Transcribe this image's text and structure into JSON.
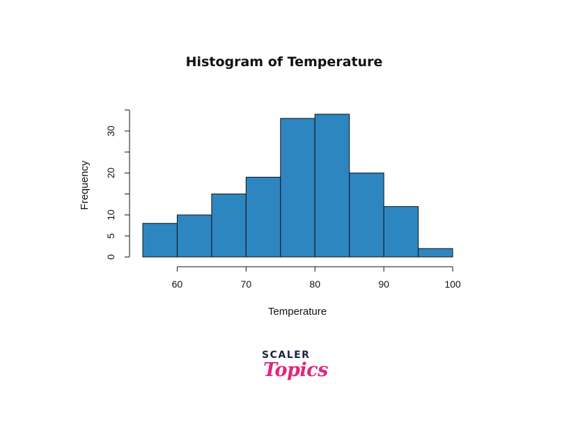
{
  "chart_data": {
    "type": "bar",
    "title": "Histogram of Temperature",
    "xlabel": "Temperature",
    "ylabel": "Frequency",
    "bins": [
      [
        55,
        60
      ],
      [
        60,
        65
      ],
      [
        65,
        70
      ],
      [
        70,
        75
      ],
      [
        75,
        80
      ],
      [
        80,
        85
      ],
      [
        85,
        90
      ],
      [
        90,
        95
      ],
      [
        95,
        100
      ]
    ],
    "values": [
      8,
      10,
      15,
      19,
      33,
      34,
      20,
      12,
      2
    ],
    "xlim": [
      55,
      100
    ],
    "ylim": [
      0,
      35
    ],
    "xticks": [
      60,
      70,
      80,
      90,
      100
    ],
    "yticks": [
      0,
      5,
      10,
      15,
      20,
      25,
      30,
      35
    ],
    "ytick_labels": [
      "0",
      "5",
      "10",
      "",
      "20",
      "",
      "30",
      ""
    ],
    "bar_color": "#2e86c1",
    "grid": false,
    "legend": "none"
  },
  "logo": {
    "top": "SCALER",
    "bottom": "Topics",
    "top_color": "#1c2340",
    "bottom_color": "#e0267b"
  }
}
